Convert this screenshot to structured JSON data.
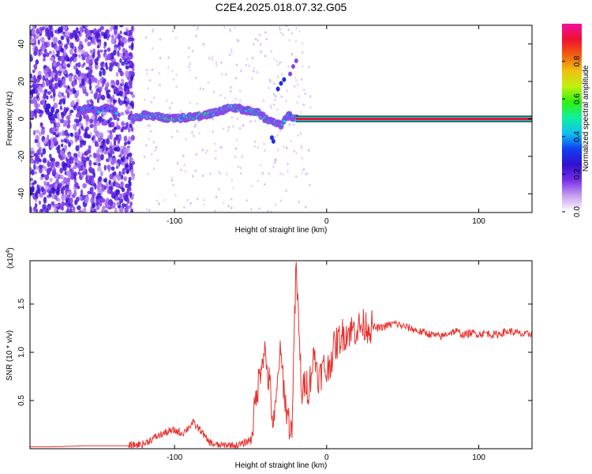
{
  "title": "C2E4.2025.018.07.32.G05",
  "colors": {
    "snr_line": "#e8302c",
    "axis": "#000000",
    "background": "#ffffff"
  },
  "chart_data": [
    {
      "type": "heatmap",
      "xlabel": "Height of straight line (km)",
      "ylabel": "Frequency (Hz)",
      "xlim": [
        -195,
        135
      ],
      "ylim": [
        -50,
        50
      ],
      "xticks": [
        -100,
        0,
        100
      ],
      "yticks": [
        -40,
        -20,
        0,
        20,
        40
      ],
      "colorbar": {
        "label": "Normalized spectral amplitude",
        "range": [
          0,
          1
        ],
        "ticks": [
          0.0,
          0.2,
          0.4,
          0.6,
          0.8
        ],
        "colormap": [
          "#ffffff",
          "#c8a0f0",
          "#7a30e8",
          "#3010d0",
          "#1040f0",
          "#10c0f0",
          "#10f0a0",
          "#30f010",
          "#c0f010",
          "#f0c010",
          "#f06010",
          "#f01030",
          "#f010a0"
        ]
      },
      "ridge_segments": [
        {
          "x": [
            -163,
            -160,
            -155,
            -150,
            -145,
            -141,
            -138
          ],
          "y": [
            4,
            5,
            6,
            4,
            6,
            5,
            3
          ],
          "amplitude": 0.35
        },
        {
          "x": [
            -128,
            -120,
            -110,
            -100,
            -90,
            -80,
            -75,
            -70,
            -65,
            -60,
            -55,
            -50,
            -45,
            -40,
            -35,
            -30,
            -25,
            -20
          ],
          "y": [
            0,
            2,
            1,
            0,
            1,
            2,
            3,
            4,
            6,
            6,
            5,
            4,
            3,
            0,
            -2,
            -3,
            2,
            0
          ],
          "amplitude": 0.45
        },
        {
          "x": [
            -20,
            -10,
            0,
            10,
            20,
            40,
            60,
            80,
            100,
            120,
            135
          ],
          "y": [
            0,
            0,
            0,
            0,
            0,
            0,
            0,
            0,
            0,
            0,
            0
          ],
          "amplitude": 0.92
        }
      ],
      "streaks": [
        {
          "x": [
            -32,
            -30,
            -28
          ],
          "y": [
            16,
            19,
            21
          ],
          "amplitude": 0.3
        },
        {
          "x": [
            -24,
            -22,
            -20
          ],
          "y": [
            24,
            28,
            31
          ],
          "amplitude": 0.15
        },
        {
          "x": [
            -36,
            -35
          ],
          "y": [
            -10,
            -12
          ],
          "amplitude": 0.3
        }
      ]
    },
    {
      "type": "line",
      "xlabel": "Height of straight line (km)",
      "ylabel": "SNR (10 * v/v)",
      "y_multiplier": "(x10",
      "y_exponent": "4",
      "y_multiplier_close": ")",
      "xlim": [
        -195,
        135
      ],
      "ylim": [
        0,
        1.95
      ],
      "xticks": [
        -100,
        0,
        100
      ],
      "yticks": [
        0.5,
        1.0,
        1.5
      ],
      "ytick_labels": [
        "0.5",
        "1.0",
        "1.5"
      ],
      "series": [
        {
          "x": [
            -195,
            -180,
            -160,
            -140,
            -130,
            -120,
            -115,
            -110,
            -105,
            -100,
            -95,
            -92,
            -88,
            -85,
            -82,
            -80,
            -78,
            -75,
            -70,
            -65,
            -60,
            -55,
            -50,
            -46,
            -43,
            -41,
            -39,
            -37,
            -35,
            -33,
            -31,
            -29,
            -27,
            -25,
            -23,
            -21,
            -20,
            -18,
            -16,
            -14,
            -12,
            -10,
            -8,
            -5,
            -2,
            0,
            5,
            10,
            15,
            20,
            25,
            30,
            35,
            40,
            45,
            50,
            55,
            60,
            65,
            70,
            75,
            80,
            85,
            90,
            95,
            100,
            105,
            110,
            115,
            120,
            125,
            130,
            135
          ],
          "y": [
            0.02,
            0.02,
            0.03,
            0.03,
            0.03,
            0.05,
            0.1,
            0.14,
            0.17,
            0.19,
            0.16,
            0.2,
            0.27,
            0.22,
            0.18,
            0.12,
            0.08,
            0.05,
            0.03,
            0.04,
            0.03,
            0.05,
            0.1,
            0.55,
            0.9,
            1.05,
            0.8,
            0.6,
            0.2,
            0.5,
            1.0,
            0.8,
            0.45,
            0.3,
            0.15,
            1.35,
            1.9,
            1.1,
            0.5,
            0.75,
            0.6,
            0.82,
            0.98,
            0.72,
            0.85,
            0.78,
            1.05,
            1.18,
            1.22,
            1.25,
            1.28,
            1.26,
            1.25,
            1.28,
            1.3,
            1.27,
            1.25,
            1.22,
            1.2,
            1.18,
            1.16,
            1.2,
            1.22,
            1.18,
            1.2,
            1.19,
            1.2,
            1.18,
            1.2,
            1.22,
            1.2,
            1.18,
            1.2
          ],
          "noise_from": -130,
          "noise_amplitude": 0.04
        }
      ]
    }
  ]
}
